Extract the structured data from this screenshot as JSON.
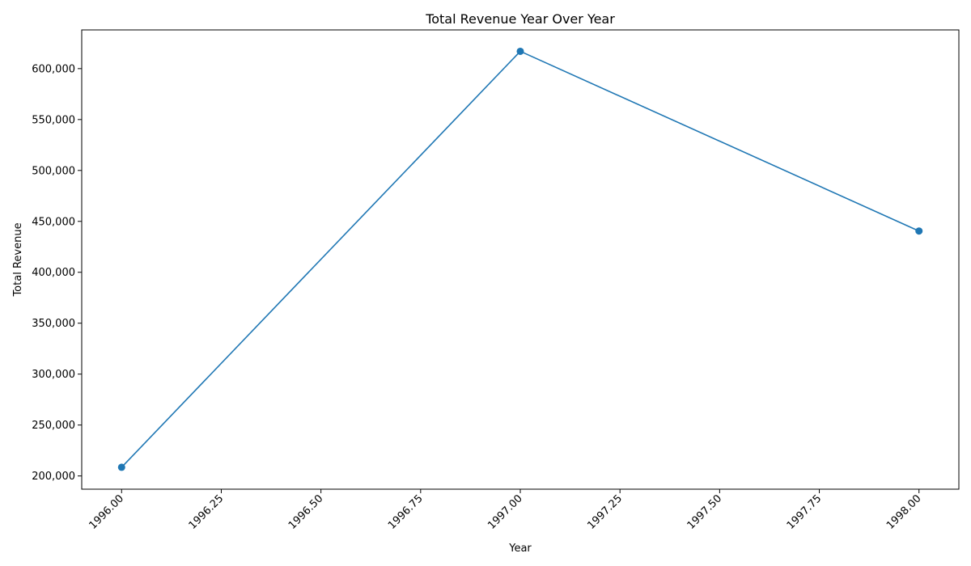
{
  "chart_data": {
    "type": "line",
    "title": "Total Revenue Year Over Year",
    "xlabel": "Year",
    "ylabel": "Total Revenue",
    "x": [
      1996,
      1997,
      1998
    ],
    "series": [
      {
        "values": [
          208500,
          617000,
          440500
        ],
        "color": "#1f77b4",
        "marker": "circle"
      }
    ],
    "xlim": [
      1995.9,
      1998.1
    ],
    "ylim": [
      187000,
      638000
    ],
    "x_ticks": [
      1996.0,
      1996.25,
      1996.5,
      1996.75,
      1997.0,
      1997.25,
      1997.5,
      1997.75,
      1998.0
    ],
    "x_tick_labels": [
      "1996.00",
      "1996.25",
      "1996.50",
      "1996.75",
      "1997.00",
      "1997.25",
      "1997.50",
      "1997.75",
      "1998.00"
    ],
    "y_ticks": [
      200000,
      250000,
      300000,
      350000,
      400000,
      450000,
      500000,
      550000,
      600000
    ],
    "y_tick_labels": [
      "200,000",
      "250,000",
      "300,000",
      "350,000",
      "400,000",
      "450,000",
      "500,000",
      "550,000",
      "600,000"
    ],
    "grid": false,
    "x_tick_rotation": "45 degrees"
  }
}
